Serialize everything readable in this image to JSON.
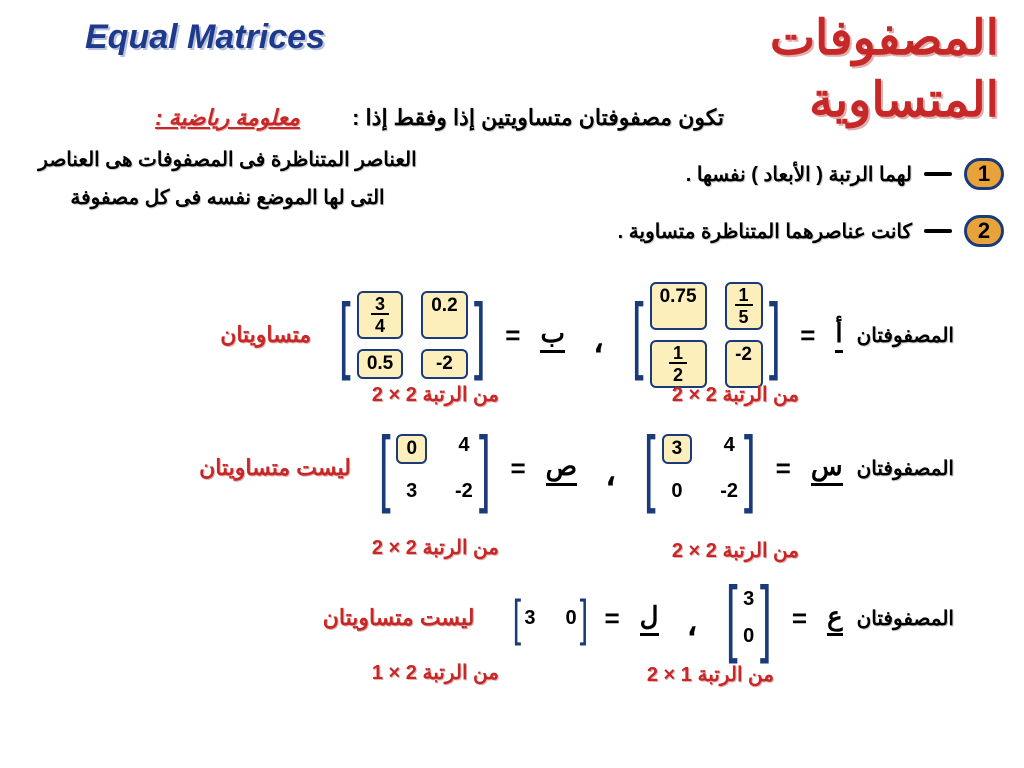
{
  "title_en": "Equal  Matrices",
  "title_ar": "المصفوفات\nالمتساوية",
  "intro": "تكون مصفوفتان متساويتين إذا وفقط إذا :",
  "conditions": [
    {
      "num": "1",
      "text": "لهما الرتبة ( الأبعاد ) نفسها ."
    },
    {
      "num": "2",
      "text": "كانت عناصرهما المتناظرة متساوية ."
    }
  ],
  "info": {
    "title": "معلومة رياضية :",
    "body": "العناصر المتناظرة فى المصفوفات هى العناصر\nالتى لها الموضع نفسه فى كل مصفوفة"
  },
  "labels": {
    "matrices_word": "المصفوفتان",
    "equal": "متساويتان",
    "not_equal": "ليست متساويتان",
    "order_prefix": "من الرتبة",
    "eq": "=",
    "comma": "،"
  },
  "ex1": {
    "varA": "أ",
    "matA": {
      "r1c1_num": "1",
      "r1c1_den": "5",
      "r1c2": "0.75",
      "r2c1": "-2",
      "r2c2_num": "1",
      "r2c2_den": "2"
    },
    "varB": "ب",
    "matB": {
      "r1c1": "0.2",
      "r1c2_num": "3",
      "r1c2_den": "4",
      "r2c1": "-2",
      "r2c2": "0.5"
    },
    "orderA": "2 × 2",
    "orderB": "2 × 2",
    "status": "equal"
  },
  "ex2": {
    "varA": "س",
    "matA": {
      "r1c1": "4",
      "r1c2": "3",
      "r2c1": "-2",
      "r2c2": "0"
    },
    "varB": "ص",
    "matB": {
      "r1c1": "4",
      "r1c2": "0",
      "r2c1": "-2",
      "r2c2": "3"
    },
    "orderA": "2 × 2",
    "orderB": "2 × 2",
    "status": "not_equal"
  },
  "ex3": {
    "varA": "ع",
    "matA": {
      "r1": "3",
      "r2": "0"
    },
    "varB": "ل",
    "matB": {
      "c1": "0",
      "c2": "3"
    },
    "orderA": "2 × 1",
    "orderB": "1 × 2",
    "status": "not_equal"
  },
  "colors": {
    "navy": "#1a3a7a",
    "red": "#c62828",
    "box_bg": "#fdefbb"
  }
}
